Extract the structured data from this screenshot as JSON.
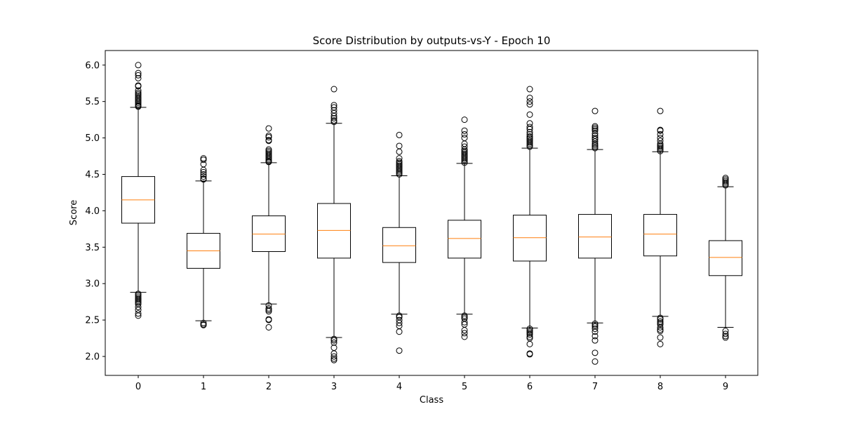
{
  "chart_data": {
    "type": "boxplot",
    "title": "Score Distribution by outputs-vs-Y - Epoch 10",
    "xlabel": "Class",
    "ylabel": "Score",
    "ylim": [
      1.74,
      6.2
    ],
    "yticks": [
      "2.0",
      "2.5",
      "3.0",
      "3.5",
      "4.0",
      "4.5",
      "5.0",
      "5.5",
      "6.0"
    ],
    "grid": false,
    "colors": {
      "box": "#000000",
      "median": "#ff7f0e",
      "outlier": "#000000"
    },
    "categories": [
      "0",
      "1",
      "2",
      "3",
      "4",
      "5",
      "6",
      "7",
      "8",
      "9"
    ],
    "boxes": [
      {
        "label": "0",
        "whisker_low": 2.88,
        "q1": 3.83,
        "median": 4.15,
        "q3": 4.47,
        "whisker_high": 5.42,
        "outliers": [
          6.0,
          5.89,
          5.86,
          5.82,
          5.72,
          5.71,
          5.65,
          5.62,
          5.6,
          5.58,
          5.56,
          5.54,
          5.52,
          5.5,
          5.48,
          5.46,
          5.44,
          5.43,
          2.86,
          2.84,
          2.82,
          2.8,
          2.78,
          2.76,
          2.74,
          2.72,
          2.68,
          2.64,
          2.59,
          2.56
        ]
      },
      {
        "label": "1",
        "whisker_low": 2.49,
        "q1": 3.21,
        "median": 3.45,
        "q3": 3.69,
        "whisker_high": 4.41,
        "outliers": [
          4.72,
          4.7,
          4.64,
          4.56,
          4.53,
          4.5,
          4.47,
          4.44,
          4.43,
          2.46,
          2.44,
          2.43
        ]
      },
      {
        "label": "2",
        "whisker_low": 2.72,
        "q1": 3.44,
        "median": 3.68,
        "q3": 3.93,
        "whisker_high": 4.66,
        "outliers": [
          5.13,
          5.03,
          5.01,
          4.97,
          4.96,
          4.84,
          4.82,
          4.8,
          4.78,
          4.76,
          4.74,
          4.72,
          4.7,
          4.68,
          4.67,
          2.7,
          2.66,
          2.64,
          2.62,
          2.51,
          2.5,
          2.4
        ]
      },
      {
        "label": "3",
        "whisker_low": 2.26,
        "q1": 3.35,
        "median": 3.73,
        "q3": 4.1,
        "whisker_high": 5.2,
        "outliers": [
          5.67,
          5.45,
          5.42,
          5.38,
          5.34,
          5.3,
          5.27,
          5.24,
          5.22,
          2.24,
          2.22,
          2.19,
          2.12,
          2.04,
          2.0,
          1.97,
          1.95
        ]
      },
      {
        "label": "4",
        "whisker_low": 2.58,
        "q1": 3.29,
        "median": 3.52,
        "q3": 3.77,
        "whisker_high": 4.48,
        "outliers": [
          5.04,
          4.89,
          4.81,
          4.72,
          4.68,
          4.66,
          4.64,
          4.62,
          4.6,
          4.58,
          4.56,
          4.54,
          4.52,
          4.5,
          2.56,
          2.54,
          2.5,
          2.46,
          2.42,
          2.34,
          2.08
        ]
      },
      {
        "label": "5",
        "whisker_low": 2.58,
        "q1": 3.35,
        "median": 3.62,
        "q3": 3.87,
        "whisker_high": 4.65,
        "outliers": [
          5.25,
          5.1,
          5.05,
          5.0,
          4.92,
          4.88,
          4.84,
          4.82,
          4.8,
          4.78,
          4.76,
          4.74,
          4.72,
          4.7,
          4.68,
          4.66,
          2.56,
          2.54,
          2.52,
          2.47,
          2.44,
          2.36,
          2.32,
          2.27
        ]
      },
      {
        "label": "6",
        "whisker_low": 2.39,
        "q1": 3.31,
        "median": 3.63,
        "q3": 3.94,
        "whisker_high": 4.86,
        "outliers": [
          5.67,
          5.55,
          5.5,
          5.46,
          5.32,
          5.2,
          5.15,
          5.12,
          5.08,
          5.05,
          5.02,
          5.0,
          4.98,
          4.96,
          4.94,
          4.92,
          4.9,
          4.88,
          2.38,
          2.36,
          2.34,
          2.32,
          2.3,
          2.27,
          2.25,
          2.17,
          2.04,
          2.03
        ]
      },
      {
        "label": "7",
        "whisker_low": 2.46,
        "q1": 3.35,
        "median": 3.64,
        "q3": 3.95,
        "whisker_high": 4.84,
        "outliers": [
          5.37,
          5.16,
          5.14,
          5.12,
          5.1,
          5.06,
          5.03,
          5.0,
          4.98,
          4.95,
          4.92,
          4.9,
          4.88,
          4.86,
          2.45,
          2.43,
          2.41,
          2.38,
          2.34,
          2.28,
          2.22,
          2.05,
          1.93
        ]
      },
      {
        "label": "8",
        "whisker_low": 2.55,
        "q1": 3.38,
        "median": 3.68,
        "q3": 3.95,
        "whisker_high": 4.81,
        "outliers": [
          5.37,
          5.11,
          5.1,
          5.05,
          5.0,
          4.96,
          4.92,
          4.9,
          4.88,
          4.86,
          4.84,
          4.82,
          2.53,
          2.51,
          2.48,
          2.46,
          2.44,
          2.4,
          2.37,
          2.35,
          2.26,
          2.17
        ]
      },
      {
        "label": "9",
        "whisker_low": 2.4,
        "q1": 3.11,
        "median": 3.36,
        "q3": 3.59,
        "whisker_high": 4.33,
        "outliers": [
          4.45,
          4.43,
          4.41,
          4.39,
          4.37,
          4.35,
          2.35,
          2.31,
          2.28,
          2.26
        ]
      }
    ]
  }
}
